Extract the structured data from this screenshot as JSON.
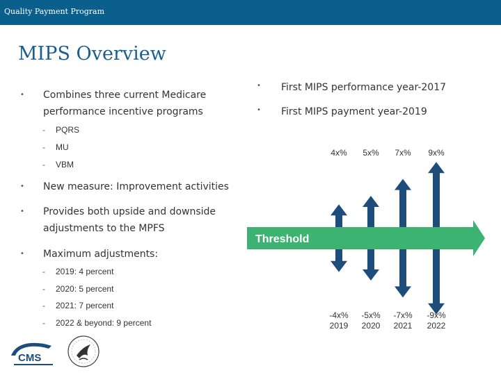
{
  "header": {
    "title": "Quality Payment Program"
  },
  "slide": {
    "title": "MIPS Overview",
    "left_bullets": [
      "Combines three current Medicare performance incentive programs",
      "New measure: Improvement activities",
      "Provides both upside and downside adjustments to the MPFS",
      "Maximum adjustments:"
    ],
    "programs": [
      "PQRS",
      "MU",
      "VBM"
    ],
    "max_adjustments": [
      "2019: 4 percent",
      "2020: 5 percent",
      "2021: 7 percent",
      "2022 & beyond: 9 percent"
    ],
    "right_bullets": [
      "First MIPS performance year-2017",
      "First MIPS payment year-2019"
    ],
    "bullet_symbol": "•",
    "sub_symbol": "-"
  },
  "chart": {
    "threshold_label": "Threshold",
    "colors": {
      "arrow": "#1e4d7b",
      "threshold": "#3cb371"
    },
    "years": [
      {
        "year": "2019",
        "up": "4x%",
        "down": "-4x%",
        "pct": 4
      },
      {
        "year": "2020",
        "up": "5x%",
        "down": "-5x%",
        "pct": 5
      },
      {
        "year": "2021",
        "up": "7x%",
        "down": "-7x%",
        "pct": 7
      },
      {
        "year": "2022",
        "up": "9x%",
        "down": "-9x%",
        "pct": 9
      }
    ]
  },
  "footer": {
    "logo_text": "CMS"
  }
}
